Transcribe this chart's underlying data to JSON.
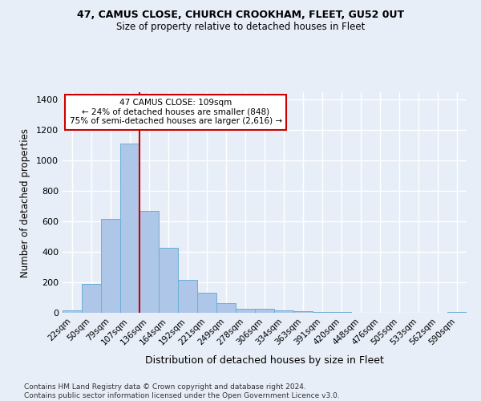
{
  "title1": "47, CAMUS CLOSE, CHURCH CROOKHAM, FLEET, GU52 0UT",
  "title2": "Size of property relative to detached houses in Fleet",
  "xlabel": "Distribution of detached houses by size in Fleet",
  "ylabel": "Number of detached properties",
  "categories": [
    "22sqm",
    "50sqm",
    "79sqm",
    "107sqm",
    "136sqm",
    "164sqm",
    "192sqm",
    "221sqm",
    "249sqm",
    "278sqm",
    "306sqm",
    "334sqm",
    "363sqm",
    "391sqm",
    "420sqm",
    "448sqm",
    "476sqm",
    "505sqm",
    "533sqm",
    "562sqm",
    "590sqm"
  ],
  "values": [
    15,
    190,
    615,
    1110,
    670,
    425,
    215,
    130,
    65,
    25,
    25,
    15,
    10,
    5,
    3,
    2,
    1,
    1,
    0,
    0,
    5
  ],
  "bar_color": "#aec6e8",
  "bar_edge_color": "#6baed6",
  "vline_x": 3.5,
  "vline_color": "#cc0000",
  "annotation_text": "47 CAMUS CLOSE: 109sqm\n← 24% of detached houses are smaller (848)\n75% of semi-detached houses are larger (2,616) →",
  "annotation_box_color": "#ffffff",
  "annotation_box_edge": "#cc0000",
  "ylim": [
    0,
    1450
  ],
  "yticks": [
    0,
    200,
    400,
    600,
    800,
    1000,
    1200,
    1400
  ],
  "footer": "Contains HM Land Registry data © Crown copyright and database right 2024.\nContains public sector information licensed under the Open Government Licence v3.0.",
  "background_color": "#e8eef8",
  "grid_color": "#ffffff"
}
